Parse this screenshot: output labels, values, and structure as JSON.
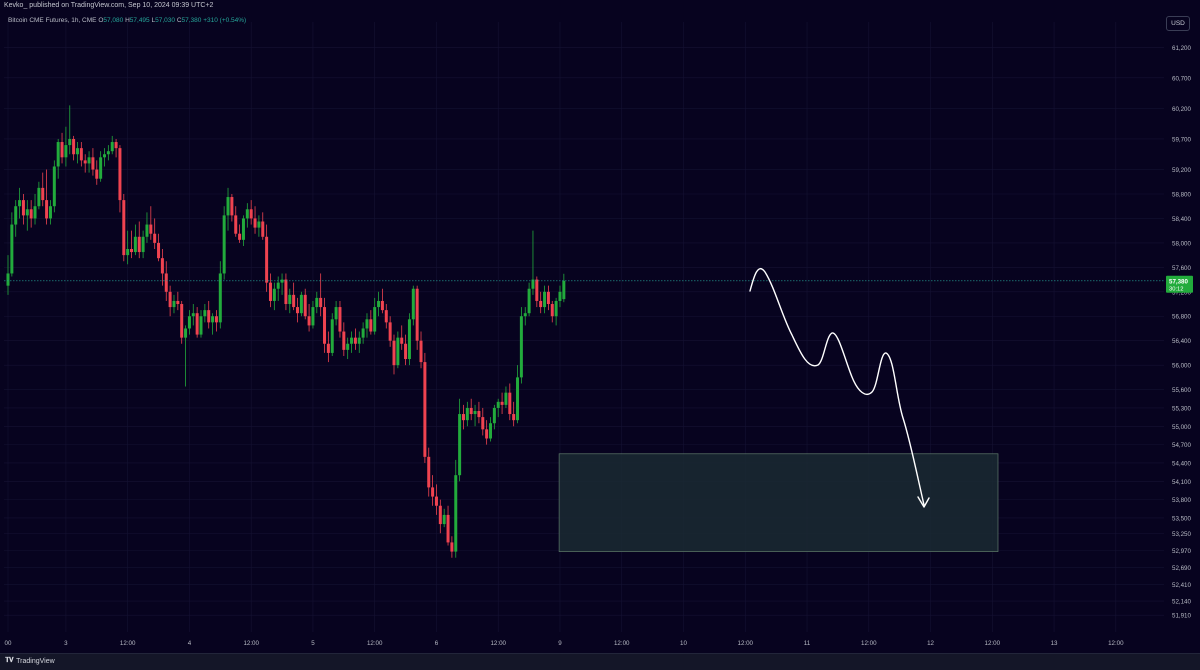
{
  "header": {
    "published": "Kevko_ published on TradingView.com, Sep 10, 2024 09:39 UTC+2"
  },
  "symbol_bar": {
    "name": "Bitcoin CME Futures, 1h, CME",
    "o_label": "O",
    "o_value": "57,080",
    "h_label": "H",
    "h_value": "57,495",
    "l_label": "L",
    "l_value": "57,030",
    "c_label": "C",
    "c_value": "57,380",
    "change": "+310 (+0.54%)"
  },
  "currency": "USD",
  "footer": {
    "brand": "TradingView"
  },
  "colors": {
    "background": "#07031f",
    "up": "#26a69a",
    "up_candle": "#22ab3c",
    "down": "#ef4350",
    "grid": "#151233",
    "zone_fill": "#1a2a33",
    "zone_border": "#5e7a6a",
    "drawing": "#ffffff",
    "price_tag": "#22ab3c"
  },
  "chart_data": {
    "type": "candlestick",
    "title": "Bitcoin CME Futures, 1h, CME",
    "ylabel": "USD",
    "ylim": [
      51700,
      61450
    ],
    "y_ticks": [
      "61,200",
      "60,700",
      "60,200",
      "59,700",
      "59,200",
      "58,800",
      "58,400",
      "58,000",
      "57,600",
      "57,200",
      "56,800",
      "56,400",
      "56,000",
      "55,600",
      "55,300",
      "55,000",
      "54,700",
      "54,400",
      "54,100",
      "53,800",
      "53,500",
      "53,250",
      "52,970",
      "52,690",
      "52,410",
      "52,140",
      "51,910"
    ],
    "x_ticks": [
      "00",
      "3",
      "12:00",
      "4",
      "12:00",
      "5",
      "12:00",
      "6",
      "12:00",
      "9",
      "12:00",
      "10",
      "12:00",
      "11",
      "12:00",
      "12",
      "12:00",
      "13",
      "12:00"
    ],
    "x_ticks_index": [
      0,
      15,
      31,
      47,
      63,
      79,
      95,
      111,
      127,
      143,
      159,
      175,
      191,
      207,
      223,
      239,
      255,
      271,
      287
    ],
    "last_price": {
      "value": 57380,
      "label": "57,380",
      "countdown": "30:12"
    },
    "candles": [
      [
        57300,
        57800,
        57150,
        57500
      ],
      [
        57500,
        58500,
        57450,
        58300
      ],
      [
        58300,
        58700,
        58100,
        58600
      ],
      [
        58600,
        58900,
        58400,
        58700
      ],
      [
        58700,
        58800,
        58300,
        58450
      ],
      [
        58450,
        58700,
        58200,
        58550
      ],
      [
        58550,
        58700,
        58250,
        58400
      ],
      [
        58400,
        58800,
        58300,
        58600
      ],
      [
        58600,
        59000,
        58550,
        58900
      ],
      [
        58900,
        59150,
        58600,
        58700
      ],
      [
        58700,
        59200,
        58300,
        58400
      ],
      [
        58400,
        58700,
        58300,
        58600
      ],
      [
        58600,
        59350,
        58500,
        59250
      ],
      [
        59250,
        59700,
        59050,
        59650
      ],
      [
        59650,
        59800,
        59300,
        59400
      ],
      [
        59400,
        59900,
        59250,
        59600
      ],
      [
        59600,
        60250,
        59450,
        59700
      ],
      [
        59700,
        59750,
        59350,
        59450
      ],
      [
        59450,
        59650,
        59300,
        59550
      ],
      [
        59550,
        59650,
        59250,
        59350
      ],
      [
        59350,
        59450,
        59150,
        59300
      ],
      [
        59300,
        59500,
        59150,
        59400
      ],
      [
        59400,
        59550,
        59100,
        59200
      ],
      [
        59200,
        59350,
        58950,
        59050
      ],
      [
        59050,
        59500,
        59000,
        59400
      ],
      [
        59400,
        59550,
        59250,
        59450
      ],
      [
        59450,
        59600,
        59350,
        59500
      ],
      [
        59500,
        59750,
        59450,
        59650
      ],
      [
        59650,
        59700,
        59400,
        59550
      ],
      [
        59550,
        59600,
        58500,
        58700
      ],
      [
        58700,
        58800,
        57700,
        57800
      ],
      [
        57800,
        58200,
        57650,
        57900
      ],
      [
        57900,
        58200,
        57750,
        57850
      ],
      [
        57850,
        58300,
        57800,
        58100
      ],
      [
        58100,
        58350,
        57750,
        57850
      ],
      [
        57850,
        58200,
        57750,
        58100
      ],
      [
        58100,
        58500,
        58000,
        58300
      ],
      [
        58300,
        58600,
        58050,
        58150
      ],
      [
        58150,
        58400,
        57900,
        58000
      ],
      [
        58000,
        58150,
        57700,
        57750
      ],
      [
        57750,
        57900,
        57300,
        57500
      ],
      [
        57500,
        57700,
        57050,
        57200
      ],
      [
        57200,
        57300,
        56800,
        56950
      ],
      [
        56950,
        57150,
        56850,
        57050
      ],
      [
        57050,
        57200,
        56900,
        57000
      ],
      [
        57000,
        57050,
        56350,
        56450
      ],
      [
        56450,
        56650,
        55650,
        56600
      ],
      [
        56600,
        56900,
        56500,
        56800
      ],
      [
        56800,
        57000,
        56650,
        56850
      ],
      [
        56850,
        56950,
        56450,
        56500
      ],
      [
        56500,
        56900,
        56450,
        56800
      ],
      [
        56800,
        57000,
        56700,
        56900
      ],
      [
        56900,
        57050,
        56600,
        56700
      ],
      [
        56700,
        56850,
        56500,
        56800
      ],
      [
        56800,
        56900,
        56550,
        56700
      ],
      [
        56700,
        57700,
        56600,
        57500
      ],
      [
        57500,
        58600,
        57400,
        58450
      ],
      [
        58450,
        58900,
        58200,
        58750
      ],
      [
        58750,
        58800,
        58350,
        58450
      ],
      [
        58450,
        58600,
        58100,
        58150
      ],
      [
        58150,
        58300,
        58000,
        58050
      ],
      [
        58050,
        58450,
        57950,
        58400
      ],
      [
        58400,
        58650,
        58250,
        58550
      ],
      [
        58550,
        58700,
        58300,
        58400
      ],
      [
        58400,
        58600,
        58150,
        58250
      ],
      [
        58250,
        58450,
        58100,
        58350
      ],
      [
        58350,
        58500,
        58050,
        58100
      ],
      [
        58100,
        58300,
        57200,
        57350
      ],
      [
        57350,
        57500,
        56950,
        57050
      ],
      [
        57050,
        57350,
        56900,
        57250
      ],
      [
        57250,
        57450,
        57050,
        57350
      ],
      [
        57350,
        57500,
        57150,
        57400
      ],
      [
        57400,
        57500,
        56900,
        57000
      ],
      [
        57000,
        57250,
        56850,
        57150
      ],
      [
        57150,
        57350,
        56900,
        56950
      ],
      [
        56950,
        57100,
        56700,
        56850
      ],
      [
        56850,
        57200,
        56800,
        57150
      ],
      [
        57150,
        57250,
        56750,
        56800
      ],
      [
        56800,
        57000,
        56550,
        56650
      ],
      [
        56650,
        57050,
        56600,
        56950
      ],
      [
        56950,
        57200,
        56850,
        57100
      ],
      [
        57100,
        57500,
        56800,
        56950
      ],
      [
        56950,
        57100,
        56200,
        56350
      ],
      [
        56350,
        56550,
        56050,
        56200
      ],
      [
        56200,
        56850,
        56150,
        56750
      ],
      [
        56750,
        57050,
        56650,
        56950
      ],
      [
        56950,
        57050,
        56450,
        56550
      ],
      [
        56550,
        56700,
        56150,
        56250
      ],
      [
        56250,
        56450,
        56100,
        56350
      ],
      [
        56350,
        56550,
        56200,
        56450
      ],
      [
        56450,
        56600,
        56250,
        56350
      ],
      [
        56350,
        56550,
        56200,
        56450
      ],
      [
        56450,
        56700,
        56350,
        56600
      ],
      [
        56600,
        56850,
        56450,
        56750
      ],
      [
        56750,
        56900,
        56500,
        56550
      ],
      [
        56550,
        57100,
        56500,
        56950
      ],
      [
        56950,
        57200,
        56800,
        57050
      ],
      [
        57050,
        57250,
        56850,
        56900
      ],
      [
        56900,
        57000,
        56600,
        56700
      ],
      [
        56700,
        56800,
        56300,
        56400
      ],
      [
        56400,
        56500,
        55850,
        56000
      ],
      [
        56000,
        56550,
        55950,
        56450
      ],
      [
        56450,
        56650,
        56250,
        56350
      ],
      [
        56350,
        56500,
        56000,
        56100
      ],
      [
        56100,
        56850,
        56000,
        56750
      ],
      [
        56750,
        57300,
        56650,
        57250
      ],
      [
        57250,
        57300,
        56250,
        56400
      ],
      [
        56400,
        56550,
        55950,
        56050
      ],
      [
        56050,
        56200,
        54400,
        54500
      ],
      [
        54500,
        54650,
        53850,
        54000
      ],
      [
        54000,
        54200,
        53700,
        53850
      ],
      [
        53850,
        54050,
        53550,
        53700
      ],
      [
        53700,
        53800,
        53250,
        53400
      ],
      [
        53400,
        53650,
        53350,
        53550
      ],
      [
        53550,
        53700,
        53050,
        53100
      ],
      [
        53100,
        53200,
        52850,
        52950
      ],
      [
        52950,
        54450,
        52850,
        54200
      ],
      [
        54200,
        55450,
        54100,
        55200
      ],
      [
        55200,
        55350,
        54950,
        55100
      ],
      [
        55100,
        55400,
        55000,
        55300
      ],
      [
        55300,
        55450,
        55100,
        55200
      ],
      [
        55200,
        55350,
        55000,
        55250
      ],
      [
        55250,
        55400,
        55050,
        55150
      ],
      [
        55150,
        55300,
        54850,
        54950
      ],
      [
        54950,
        55100,
        54700,
        54800
      ],
      [
        54800,
        55150,
        54750,
        55050
      ],
      [
        55050,
        55350,
        54950,
        55300
      ],
      [
        55300,
        55450,
        55150,
        55400
      ],
      [
        55400,
        55550,
        55200,
        55350
      ],
      [
        55350,
        55650,
        55300,
        55550
      ],
      [
        55550,
        55700,
        55100,
        55200
      ],
      [
        55200,
        55400,
        55000,
        55100
      ],
      [
        55100,
        56000,
        55050,
        55800
      ],
      [
        55800,
        56950,
        55700,
        56800
      ],
      [
        56800,
        56950,
        56650,
        56850
      ],
      [
        56850,
        57350,
        56800,
        57250
      ],
      [
        57250,
        58200,
        57150,
        57400
      ],
      [
        57400,
        57450,
        56950,
        57050
      ],
      [
        57050,
        57200,
        56850,
        56950
      ],
      [
        56950,
        57300,
        56850,
        57200
      ],
      [
        57200,
        57300,
        56900,
        57000
      ],
      [
        57000,
        57050,
        56700,
        56800
      ],
      [
        56800,
        57100,
        56650,
        57050
      ],
      [
        57050,
        57300,
        56950,
        57200
      ],
      [
        57080,
        57495,
        57030,
        57380
      ]
    ],
    "zone": {
      "price_top": 54550,
      "price_bottom": 52950,
      "label": ""
    },
    "projection_drawing": true
  }
}
